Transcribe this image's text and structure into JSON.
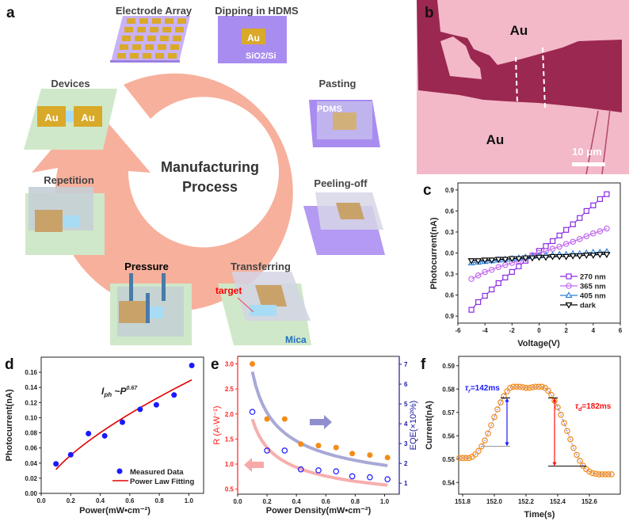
{
  "panel_a": {
    "label": "a",
    "center_title": [
      "Manufacturing",
      "Process"
    ],
    "steps": [
      "Electrode Array",
      "Dipping in HDMS",
      "Pasting",
      "Peeling-off",
      "Transferring",
      "Pressure",
      "Repetition",
      "Devices"
    ],
    "tags": {
      "au": "Au",
      "substrate": "SiO2/Si",
      "pdms": "PDMS",
      "target": "target",
      "mica": "Mica"
    },
    "colors": {
      "ring": "#f7b09c",
      "substrate_purple": "#a98cf0",
      "mica_green": "#cfe8c9",
      "gold": "#d9a92a",
      "target": "#ff0000",
      "mica_text": "#1f6fbf"
    }
  },
  "panel_b": {
    "label": "b",
    "au_top": "Au",
    "au_bottom": "Au",
    "scale_bar": "10 μm",
    "colors": {
      "background": "#f3b9c9",
      "flake": "#9b2850"
    }
  },
  "chart_data": [
    {
      "panel": "c",
      "type": "line",
      "xlabel": "Voltage(V)",
      "ylabel": "Photocurrent(nA)",
      "xlim": [
        -6,
        6
      ],
      "ylim": [
        -1.0,
        1.0
      ],
      "x_ticks": [
        -6,
        -4,
        -2,
        0,
        2,
        4,
        6
      ],
      "y_ticks": [
        0.9,
        0.6,
        0.3,
        0.0,
        -0.3,
        -0.6,
        -0.9
      ],
      "y_tick_labels": [
        "0.9",
        "0.6",
        "0.3",
        "0.0",
        "0.3",
        "0.6",
        "0.9"
      ],
      "legend_position": "bottom-right",
      "x": [
        -5,
        -4.5,
        -4,
        -3.5,
        -3,
        -2.5,
        -2,
        -1.5,
        -1,
        -0.5,
        0,
        0.5,
        1,
        1.5,
        2,
        2.5,
        3,
        3.5,
        4,
        4.5,
        5
      ],
      "series": [
        {
          "name": "270 nm",
          "color": "#8a2be2",
          "marker": "square",
          "values": [
            -0.81,
            -0.7,
            -0.61,
            -0.52,
            -0.43,
            -0.35,
            -0.27,
            -0.19,
            -0.11,
            -0.04,
            0.03,
            0.1,
            0.17,
            0.25,
            0.33,
            0.41,
            0.5,
            0.6,
            0.68,
            0.77,
            0.84
          ]
        },
        {
          "name": "365 nm",
          "color": "#c36bf0",
          "marker": "circle",
          "values": [
            -0.37,
            -0.32,
            -0.27,
            -0.24,
            -0.2,
            -0.17,
            -0.14,
            -0.11,
            -0.08,
            -0.03,
            0.0,
            0.03,
            0.06,
            0.09,
            0.13,
            0.16,
            0.2,
            0.24,
            0.28,
            0.31,
            0.35
          ]
        },
        {
          "name": "405 nm",
          "color": "#2f7fd8",
          "marker": "triangle-up",
          "values": [
            -0.14,
            -0.13,
            -0.12,
            -0.11,
            -0.1,
            -0.09,
            -0.08,
            -0.07,
            -0.06,
            -0.05,
            -0.04,
            -0.03,
            -0.03,
            -0.02,
            -0.02,
            -0.01,
            -0.01,
            0.0,
            0.01,
            0.01,
            0.02
          ]
        },
        {
          "name": "dark",
          "color": "#000000",
          "marker": "triangle-down",
          "values": [
            -0.11,
            -0.11,
            -0.1,
            -0.1,
            -0.09,
            -0.09,
            -0.08,
            -0.08,
            -0.07,
            -0.07,
            -0.06,
            -0.06,
            -0.05,
            -0.05,
            -0.05,
            -0.04,
            -0.04,
            -0.03,
            -0.03,
            -0.02,
            -0.02
          ]
        }
      ]
    },
    {
      "panel": "d",
      "type": "scatter",
      "xlabel": "Power(mW•cm⁻²)",
      "ylabel": "Photocurrent(nA)",
      "xlim": [
        0,
        1.1
      ],
      "ylim": [
        0,
        0.18
      ],
      "x_ticks": [
        0.0,
        0.2,
        0.4,
        0.6,
        0.8,
        1.0
      ],
      "y_ticks": [
        0.0,
        0.02,
        0.04,
        0.06,
        0.08,
        0.1,
        0.12,
        0.14,
        0.16
      ],
      "annotation": {
        "base": "I",
        "sub": "ph",
        "mid": " ~P",
        "sup": "0.67"
      },
      "legend_position": "bottom-right",
      "series": [
        {
          "name": "Measured Data",
          "color": "#1a1aff",
          "marker": "circle",
          "x": [
            0.1,
            0.2,
            0.32,
            0.43,
            0.55,
            0.67,
            0.78,
            0.9,
            1.02
          ],
          "values": [
            0.039,
            0.051,
            0.079,
            0.076,
            0.094,
            0.111,
            0.117,
            0.13,
            0.169
          ]
        },
        {
          "name": "Power Law Fitting",
          "color": "#e00000",
          "type": "line",
          "fit": {
            "coefficient": 0.148,
            "exponent": 0.67,
            "x_range": [
              0.1,
              1.02
            ]
          }
        }
      ]
    },
    {
      "panel": "e",
      "type": "scatter",
      "xlabel": "Power Density(mW•cm⁻²)",
      "ylabel_left": "R (A·W⁻¹)",
      "ylabel_right": "EQE(×10²%)",
      "xlim": [
        0,
        1.1
      ],
      "ylim_left": [
        0.4,
        3.15
      ],
      "ylim_right": [
        0.45,
        7.4
      ],
      "x_ticks": [
        0.0,
        0.2,
        0.4,
        0.6,
        0.8,
        1.0
      ],
      "y_ticks_left": [
        0.5,
        1.0,
        1.5,
        2.0,
        2.5,
        3.0
      ],
      "y_ticks_right": [
        1,
        2,
        3,
        4,
        5,
        6,
        7
      ],
      "x": [
        0.1,
        0.2,
        0.32,
        0.43,
        0.55,
        0.67,
        0.78,
        0.9,
        1.02
      ],
      "series": [
        {
          "axis": "left",
          "color": "#f28c1c",
          "marker": "filled-circle",
          "values": [
            3.0,
            1.9,
            1.9,
            1.4,
            1.37,
            1.33,
            1.21,
            1.18,
            1.13
          ],
          "fit": {
            "coefficient": 0.586,
            "exponent": -0.51,
            "x_range": [
              0.1,
              1.02
            ],
            "color": "#f7a0a0"
          }
        },
        {
          "axis": "right",
          "color": "#1a1aff",
          "marker": "open-circle",
          "values": [
            4.6,
            2.65,
            2.65,
            1.7,
            1.65,
            1.6,
            1.35,
            1.3,
            1.2
          ],
          "fit": {
            "coefficient": 1.91,
            "exponent": -0.54,
            "x_range": [
              0.1,
              1.02
            ],
            "color": "#9a9ad0"
          }
        }
      ],
      "axis_colors": {
        "left": "#ff2020",
        "right": "#1a1aa0"
      }
    },
    {
      "panel": "f",
      "type": "scatter",
      "xlabel": "Time(s)",
      "ylabel": "Current(nA)",
      "xlim": [
        151.775,
        152.795
      ],
      "ylim": [
        0.535,
        0.594
      ],
      "x_ticks": [
        151.8,
        152.0,
        152.2,
        152.4,
        152.6
      ],
      "y_ticks": [
        0.54,
        0.55,
        0.56,
        0.57,
        0.58,
        0.59
      ],
      "annotations": [
        {
          "text_base": "τ",
          "text_sub": "r",
          "text_rest": "=142ms",
          "color": "#1a1aff",
          "arrow_x": 152.08,
          "arrow_y": [
            0.5555,
            0.5762
          ]
        },
        {
          "text_base": "τ",
          "text_sub": "d",
          "text_rest": "=182ms",
          "color": "#ff1010",
          "arrow_x": 152.38,
          "arrow_y": [
            0.547,
            0.5762
          ]
        }
      ],
      "series": [
        {
          "color": "#f28c1c",
          "line_color": "#2a2aff",
          "marker": "open-circle",
          "x": [
            151.78,
            151.8,
            151.82,
            151.84,
            151.86,
            151.88,
            151.9,
            151.92,
            151.94,
            151.96,
            151.98,
            152.0,
            152.02,
            152.04,
            152.06,
            152.08,
            152.1,
            152.12,
            152.14,
            152.16,
            152.18,
            152.2,
            152.22,
            152.24,
            152.26,
            152.28,
            152.3,
            152.32,
            152.34,
            152.36,
            152.38,
            152.4,
            152.42,
            152.44,
            152.46,
            152.48,
            152.5,
            152.52,
            152.54,
            152.56,
            152.58,
            152.6,
            152.62,
            152.64,
            152.66,
            152.68,
            152.7,
            152.72,
            152.74
          ],
          "values": [
            0.5505,
            0.5505,
            0.5505,
            0.5505,
            0.551,
            0.552,
            0.5535,
            0.5555,
            0.558,
            0.561,
            0.5645,
            0.568,
            0.5713,
            0.5743,
            0.577,
            0.579,
            0.5805,
            0.581,
            0.581,
            0.581,
            0.5808,
            0.5805,
            0.5805,
            0.5808,
            0.581,
            0.581,
            0.581,
            0.5805,
            0.5793,
            0.5775,
            0.575,
            0.5722,
            0.569,
            0.5655,
            0.562,
            0.5585,
            0.5548,
            0.5518,
            0.5493,
            0.5472,
            0.5457,
            0.5447,
            0.544,
            0.5437,
            0.5435,
            0.5435,
            0.5435,
            0.5435,
            0.5435
          ]
        }
      ]
    }
  ]
}
